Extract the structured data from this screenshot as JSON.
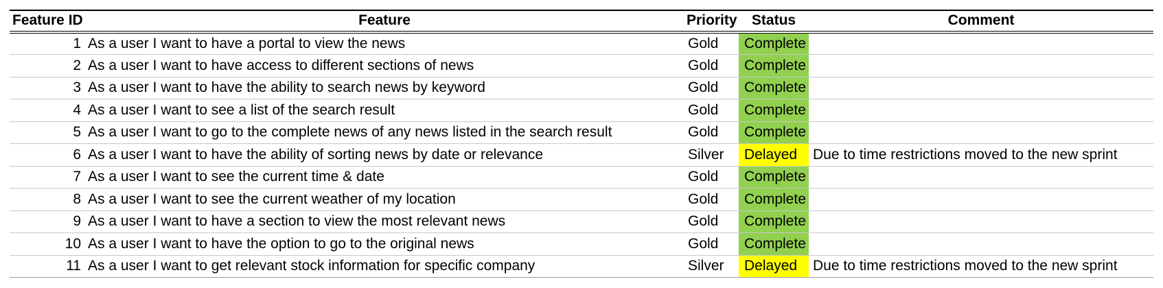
{
  "table": {
    "headers": {
      "id": "Feature ID",
      "feature": "Feature",
      "priority": "Priority",
      "status": "Status",
      "comment": "Comment"
    },
    "rows": [
      {
        "id": "1",
        "feature": "As a user I want to have a portal to view the news",
        "priority": "Gold",
        "status": "Complete",
        "comment": ""
      },
      {
        "id": "2",
        "feature": "As a user I want to have access to different sections of news",
        "priority": "Gold",
        "status": "Complete",
        "comment": ""
      },
      {
        "id": "3",
        "feature": "As a user I want to have the ability to search news by keyword",
        "priority": "Gold",
        "status": "Complete",
        "comment": ""
      },
      {
        "id": "4",
        "feature": "As a user I want to see a list of the search result",
        "priority": "Gold",
        "status": "Complete",
        "comment": ""
      },
      {
        "id": "5",
        "feature": "As a user I want to go to the complete news of any news listed in the search result",
        "priority": "Gold",
        "status": "Complete",
        "comment": ""
      },
      {
        "id": "6",
        "feature": "As a user I want to have the ability of sorting news by date or relevance",
        "priority": "Silver",
        "status": "Delayed",
        "comment": "Due to time restrictions moved to the new sprint"
      },
      {
        "id": "7",
        "feature": "As a user I want to see the current time & date",
        "priority": "Gold",
        "status": "Complete",
        "comment": ""
      },
      {
        "id": "8",
        "feature": "As a user I want to see the current weather of my location",
        "priority": "Gold",
        "status": "Complete",
        "comment": ""
      },
      {
        "id": "9",
        "feature": "As a user I want to have a section to view the most relevant news",
        "priority": "Gold",
        "status": "Complete",
        "comment": ""
      },
      {
        "id": "10",
        "feature": "As a user I want to have the option to go to the original news",
        "priority": "Gold",
        "status": "Complete",
        "comment": ""
      },
      {
        "id": "11",
        "feature": "As a user I want to get relevant stock information for specific company",
        "priority": "Silver",
        "status": "Delayed",
        "comment": "Due to time restrictions moved to the new sprint"
      }
    ]
  },
  "colors": {
    "complete": "#92d050",
    "delayed": "#ffff00"
  }
}
